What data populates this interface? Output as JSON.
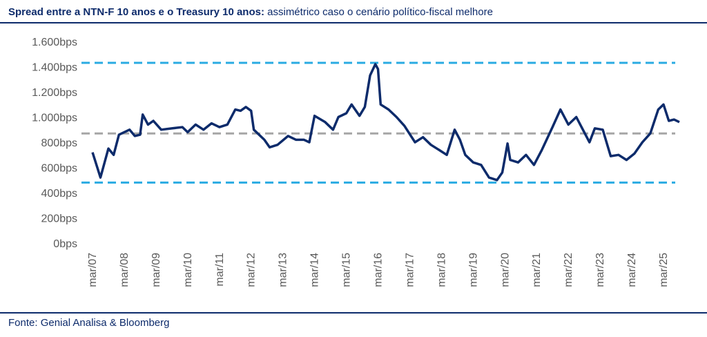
{
  "chart_data": {
    "type": "line",
    "title": "Spread entre a NTN-F 10 anos e o Treasury 10 anos:",
    "subtitle": "assimétrico caso o cenário político-fiscal melhore",
    "source": "Fonte: Genial Analisa & Bloomberg",
    "x": [
      "2007-03",
      "2007-06",
      "2007-09",
      "2007-11",
      "2008-01",
      "2008-05",
      "2008-07",
      "2008-09",
      "2008-10",
      "2008-12",
      "2009-02",
      "2009-05",
      "2009-09",
      "2010-01",
      "2010-03",
      "2010-06",
      "2010-09",
      "2010-12",
      "2011-03",
      "2011-06",
      "2011-09",
      "2011-11",
      "2012-01",
      "2012-03",
      "2012-04",
      "2012-08",
      "2012-10",
      "2013-01",
      "2013-05",
      "2013-08",
      "2013-11",
      "2014-01",
      "2014-03",
      "2014-07",
      "2014-10",
      "2014-12",
      "2015-03",
      "2015-05",
      "2015-08",
      "2015-10",
      "2015-12",
      "2016-02",
      "2016-03",
      "2016-04",
      "2016-07",
      "2016-10",
      "2017-01",
      "2017-05",
      "2017-08",
      "2017-11",
      "2018-02",
      "2018-05",
      "2018-08",
      "2018-10",
      "2018-12",
      "2019-03",
      "2019-06",
      "2019-09",
      "2019-12",
      "2020-02",
      "2020-04",
      "2020-05",
      "2020-08",
      "2020-11",
      "2021-02",
      "2021-05",
      "2021-09",
      "2021-12",
      "2022-03",
      "2022-06",
      "2022-08",
      "2022-11",
      "2023-01",
      "2023-04",
      "2023-07",
      "2023-10",
      "2024-01",
      "2024-04",
      "2024-07",
      "2024-10",
      "2025-01",
      "2025-03",
      "2025-05",
      "2025-07",
      "2025-09"
    ],
    "series": [
      {
        "name": "Spread",
        "color": "#0d2b6b",
        "values": [
          720,
          520,
          750,
          700,
          860,
          900,
          850,
          860,
          1020,
          940,
          970,
          900,
          910,
          920,
          880,
          940,
          900,
          950,
          920,
          940,
          1060,
          1050,
          1080,
          1050,
          900,
          820,
          760,
          780,
          850,
          820,
          820,
          800,
          1010,
          960,
          900,
          1000,
          1030,
          1100,
          1010,
          1080,
          1330,
          1420,
          1380,
          1100,
          1060,
          1000,
          930,
          800,
          840,
          780,
          740,
          700,
          900,
          820,
          700,
          640,
          620,
          520,
          500,
          560,
          790,
          660,
          640,
          700,
          620,
          740,
          920,
          1060,
          940,
          1000,
          920,
          800,
          910,
          900,
          690,
          700,
          660,
          710,
          800,
          870,
          1060,
          1100,
          970,
          980,
          960
        ]
      }
    ],
    "reference_lines": [
      {
        "value": 1430,
        "color": "#29abe2",
        "style": "dashed"
      },
      {
        "value": 870,
        "color": "#a6a6a6",
        "style": "dashed"
      },
      {
        "value": 480,
        "color": "#29abe2",
        "style": "dashed"
      }
    ],
    "xlim": [
      "2007-03",
      "2025-09"
    ],
    "xticks": [
      {
        "value": "2007-03",
        "label": "mar/07"
      },
      {
        "value": "2008-03",
        "label": "mar/08"
      },
      {
        "value": "2009-03",
        "label": "mar/09"
      },
      {
        "value": "2010-03",
        "label": "mar/10"
      },
      {
        "value": "2011-03",
        "label": "mar/11"
      },
      {
        "value": "2012-03",
        "label": "mar/12"
      },
      {
        "value": "2013-03",
        "label": "mar/13"
      },
      {
        "value": "2014-03",
        "label": "mar/14"
      },
      {
        "value": "2015-03",
        "label": "mar/15"
      },
      {
        "value": "2016-03",
        "label": "mar/16"
      },
      {
        "value": "2017-03",
        "label": "mar/17"
      },
      {
        "value": "2018-03",
        "label": "mar/18"
      },
      {
        "value": "2019-03",
        "label": "mar/19"
      },
      {
        "value": "2020-03",
        "label": "mar/20"
      },
      {
        "value": "2021-03",
        "label": "mar/21"
      },
      {
        "value": "2022-03",
        "label": "mar/22"
      },
      {
        "value": "2023-03",
        "label": "mar/23"
      },
      {
        "value": "2024-03",
        "label": "mar/24"
      },
      {
        "value": "2025-03",
        "label": "mar/25"
      }
    ],
    "ylim": [
      0,
      1600
    ],
    "yticks": [
      {
        "value": 0,
        "label": "0bps"
      },
      {
        "value": 200,
        "label": "200bps"
      },
      {
        "value": 400,
        "label": "400bps"
      },
      {
        "value": 600,
        "label": "600bps"
      },
      {
        "value": 800,
        "label": "800bps"
      },
      {
        "value": 1000,
        "label": "1.000bps"
      },
      {
        "value": 1200,
        "label": "1.200bps"
      },
      {
        "value": 1400,
        "label": "1.400bps"
      },
      {
        "value": 1600,
        "label": "1.600bps"
      }
    ],
    "grid": false
  }
}
